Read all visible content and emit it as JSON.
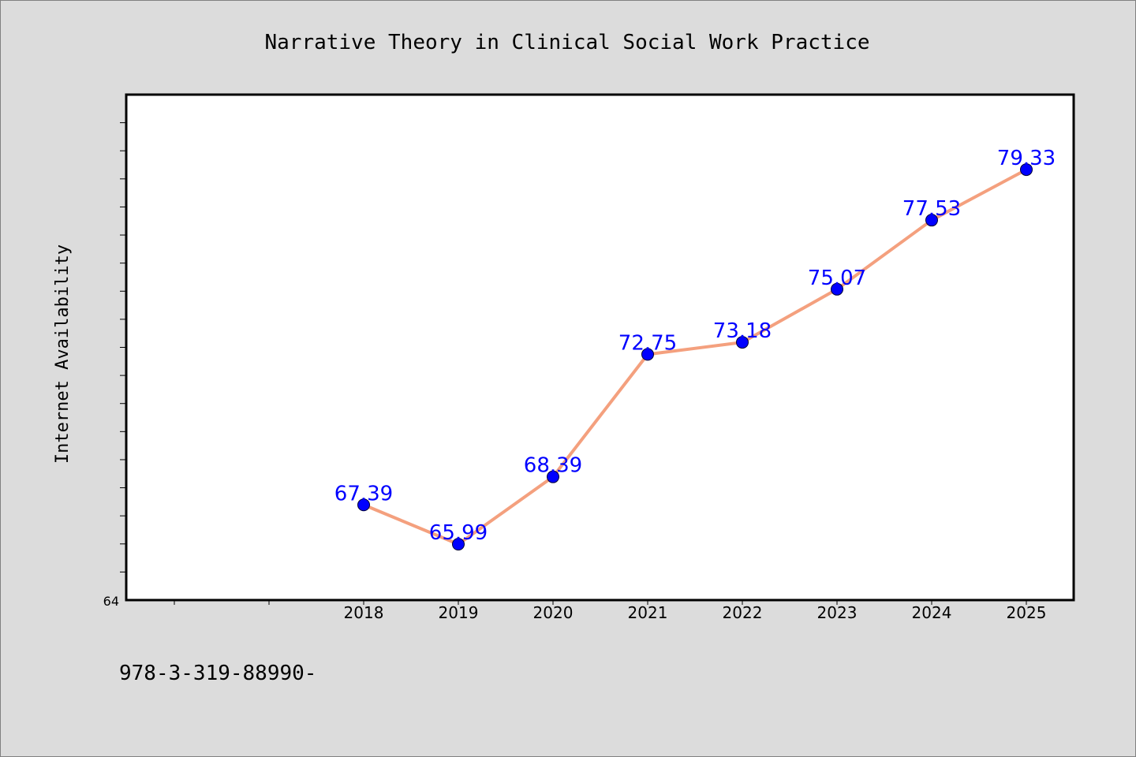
{
  "colors": {
    "background": "#dcdcdc",
    "plot_background": "#ffffff",
    "line": "#f4a07e",
    "marker": "#0000ff",
    "data_label": "#0000ff",
    "text": "#000000"
  },
  "footer_text": "978-3-319-88990-",
  "chart_data": {
    "type": "line",
    "title": "Narrative Theory in Clinical Social Work Practice",
    "xlabel": "",
    "ylabel": "Internet Availability",
    "x_ticks": [
      "",
      "",
      "2018",
      "2019",
      "2020",
      "2021",
      "2022",
      "2023",
      "2024",
      "2025"
    ],
    "categories": [
      "2018",
      "2019",
      "2020",
      "2021",
      "2022",
      "2023",
      "2024",
      "2025"
    ],
    "values": [
      67.39,
      65.99,
      68.39,
      72.75,
      73.18,
      75.07,
      77.53,
      79.33
    ],
    "data_labels": [
      "67.39",
      "65.99",
      "68.39",
      "72.75",
      "73.18",
      "75.07",
      "77.53",
      "79.33"
    ],
    "y_tick_label": "64",
    "ylim": [
      64,
      82
    ],
    "y_minor_step": 1,
    "grid": false,
    "marker": "circle"
  }
}
